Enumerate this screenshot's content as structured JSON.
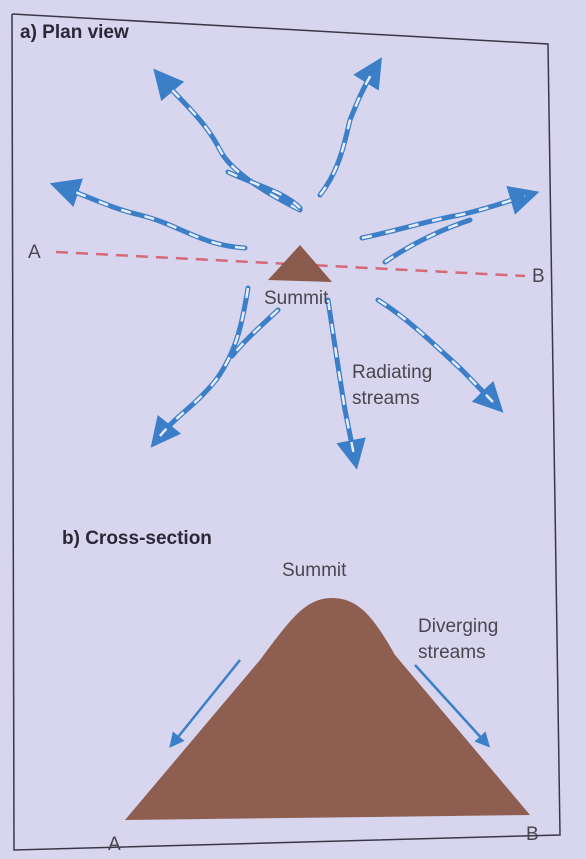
{
  "plan_view": {
    "title": "a) Plan view",
    "line_start": "A",
    "line_end": "B",
    "summit": "Summit",
    "streams_label": [
      "Radiating",
      "streams"
    ]
  },
  "cross_section": {
    "title": "b) Cross-section",
    "summit": "Summit",
    "streams_label": [
      "Diverging",
      "streams"
    ],
    "base_start": "A",
    "base_end": "B"
  }
}
